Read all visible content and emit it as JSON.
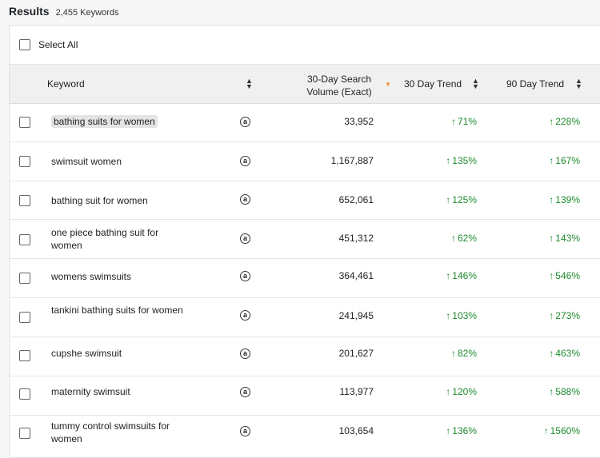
{
  "header": {
    "title": "Results",
    "count": "2,455 Keywords"
  },
  "select_all_label": "Select All",
  "columns": {
    "keyword": "Keyword",
    "volume_line1": "30-Day Search",
    "volume_line2": "Volume (Exact)",
    "trend30": "30 Day Trend",
    "trend90": "90 Day Trend"
  },
  "icons": {
    "amazon": "amazon-icon",
    "trend_up": "arrow-up-icon",
    "sort": "sort-icon"
  },
  "colors": {
    "trend_green": "#1e8a2e",
    "sort_active": "#f08c2a"
  },
  "rows": [
    {
      "keyword": "bathing suits for women",
      "volume": "33,952",
      "trend30": "71%",
      "trend90": "228%"
    },
    {
      "keyword": "swimsuit women",
      "volume": "1,167,887",
      "trend30": "135%",
      "trend90": "167%"
    },
    {
      "keyword": "bathing suit for women",
      "volume": "652,061",
      "trend30": "125%",
      "trend90": "139%"
    },
    {
      "keyword": "one piece bathing suit for women",
      "volume": "451,312",
      "trend30": "62%",
      "trend90": "143%"
    },
    {
      "keyword": "womens swimsuits",
      "volume": "364,461",
      "trend30": "146%",
      "trend90": "546%"
    },
    {
      "keyword": "tankini bathing suits for women",
      "volume": "241,945",
      "trend30": "103%",
      "trend90": "273%"
    },
    {
      "keyword": "cupshe swimsuit",
      "volume": "201,627",
      "trend30": "82%",
      "trend90": "463%"
    },
    {
      "keyword": "maternity swimsuit",
      "volume": "113,977",
      "trend30": "120%",
      "trend90": "588%"
    },
    {
      "keyword": "tummy control swimsuits for women",
      "volume": "103,654",
      "trend30": "136%",
      "trend90": "1560%"
    }
  ]
}
